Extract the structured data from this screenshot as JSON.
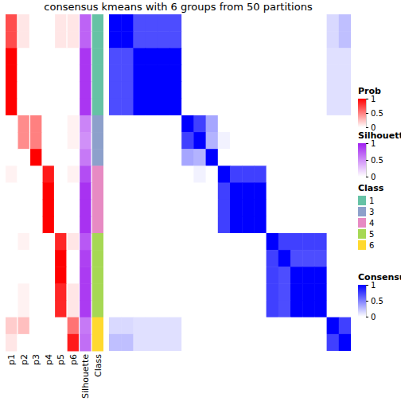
{
  "chart_data": {
    "type": "heatmap",
    "title": "consensus kmeans with 6 groups from 50 partitions",
    "column_labels": [
      "p1",
      "p2",
      "p3",
      "p4",
      "p5",
      "p6",
      "Silhouette",
      "Class"
    ],
    "membership": [
      [
        0.7,
        0.7,
        1,
        1,
        1,
        1,
        0,
        0,
        0,
        0.05,
        0,
        0,
        0,
        0,
        0,
        0,
        0,
        0,
        0.2,
        0.1
      ],
      [
        0.1,
        0.1,
        0,
        0,
        0,
        0,
        0.45,
        0.45,
        0,
        0,
        0,
        0,
        0,
        0.05,
        0,
        0,
        0.05,
        0.05,
        0.25,
        0
      ],
      [
        0,
        0,
        0,
        0,
        0,
        0,
        0.5,
        0.5,
        1,
        0,
        0,
        0,
        0,
        0,
        0,
        0,
        0,
        0,
        0,
        0
      ],
      [
        0,
        0,
        0,
        0,
        0,
        0,
        0,
        0,
        0,
        0.9,
        1,
        1,
        1,
        0,
        0,
        0,
        0,
        0,
        0,
        0
      ],
      [
        0.1,
        0.1,
        0,
        0,
        0,
        0,
        0,
        0,
        0,
        0,
        0,
        0,
        0,
        0.85,
        1,
        1,
        0.85,
        0.85,
        0,
        0
      ],
      [
        0.1,
        0.1,
        0,
        0,
        0,
        0,
        0.05,
        0.05,
        0,
        0.05,
        0,
        0,
        0,
        0.1,
        0,
        0,
        0.1,
        0.1,
        0.55,
        0.9
      ]
    ],
    "silhouette": [
      0.7,
      0.7,
      0.9,
      0.9,
      0.9,
      0.9,
      0.55,
      0.5,
      0.6,
      0.8,
      0.92,
      0.92,
      0.92,
      0.75,
      0.85,
      0.88,
      0.88,
      0.88,
      0.6,
      0.65
    ],
    "classes": [
      1,
      1,
      1,
      1,
      1,
      1,
      3,
      3,
      3,
      4,
      4,
      4,
      4,
      5,
      5,
      5,
      5,
      5,
      6,
      6
    ],
    "consensus": [
      [
        1,
        1,
        0.7,
        0.7,
        0.7,
        0.7,
        0,
        0,
        0,
        0,
        0,
        0,
        0,
        0,
        0,
        0,
        0,
        0,
        0.15,
        0.25
      ],
      [
        1,
        1,
        0.7,
        0.7,
        0.7,
        0.7,
        0,
        0,
        0,
        0,
        0,
        0,
        0,
        0,
        0,
        0,
        0,
        0,
        0.15,
        0.25
      ],
      [
        0.7,
        0.7,
        1,
        1,
        1,
        1,
        0,
        0,
        0,
        0,
        0,
        0,
        0,
        0,
        0,
        0,
        0,
        0,
        0.12,
        0.12
      ],
      [
        0.7,
        0.7,
        1,
        1,
        1,
        1,
        0,
        0,
        0,
        0,
        0,
        0,
        0,
        0,
        0,
        0,
        0,
        0,
        0.12,
        0.12
      ],
      [
        0.7,
        0.7,
        1,
        1,
        1,
        1,
        0,
        0,
        0,
        0,
        0,
        0,
        0,
        0,
        0,
        0,
        0,
        0,
        0.12,
        0.12
      ],
      [
        0.7,
        0.7,
        1,
        1,
        1,
        1,
        0,
        0,
        0,
        0,
        0,
        0,
        0,
        0,
        0,
        0,
        0,
        0,
        0.12,
        0.12
      ],
      [
        0,
        0,
        0,
        0,
        0,
        0,
        1,
        0.75,
        0.35,
        0,
        0,
        0,
        0,
        0,
        0,
        0,
        0,
        0,
        0,
        0
      ],
      [
        0,
        0,
        0,
        0,
        0,
        0,
        0.75,
        1,
        0.3,
        0.05,
        0,
        0,
        0,
        0,
        0,
        0,
        0,
        0,
        0,
        0
      ],
      [
        0,
        0,
        0,
        0,
        0,
        0,
        0.35,
        0.3,
        1,
        0,
        0,
        0,
        0,
        0,
        0,
        0,
        0,
        0,
        0,
        0
      ],
      [
        0,
        0,
        0,
        0,
        0,
        0,
        0,
        0.05,
        0,
        1,
        0.75,
        0.75,
        0.75,
        0,
        0,
        0,
        0,
        0,
        0,
        0
      ],
      [
        0,
        0,
        0,
        0,
        0,
        0,
        0,
        0,
        0,
        0.75,
        1,
        1,
        1,
        0,
        0,
        0,
        0,
        0,
        0,
        0
      ],
      [
        0,
        0,
        0,
        0,
        0,
        0,
        0,
        0,
        0,
        0.75,
        1,
        1,
        1,
        0,
        0,
        0,
        0,
        0,
        0,
        0
      ],
      [
        0,
        0,
        0,
        0,
        0,
        0,
        0,
        0,
        0,
        0.75,
        1,
        1,
        1,
        0,
        0,
        0,
        0,
        0,
        0,
        0
      ],
      [
        0,
        0,
        0,
        0,
        0,
        0,
        0,
        0,
        0,
        0,
        0,
        0,
        0,
        1,
        0.75,
        0.75,
        0.75,
        0.75,
        0,
        0
      ],
      [
        0,
        0,
        0,
        0,
        0,
        0,
        0,
        0,
        0,
        0,
        0,
        0,
        0,
        0.75,
        1,
        0.7,
        0.7,
        0.7,
        0,
        0
      ],
      [
        0,
        0,
        0,
        0,
        0,
        0,
        0,
        0,
        0,
        0,
        0,
        0,
        0,
        0.75,
        0.7,
        1,
        1,
        1,
        0,
        0
      ],
      [
        0,
        0,
        0,
        0,
        0,
        0,
        0,
        0,
        0,
        0,
        0,
        0,
        0,
        0.75,
        0.7,
        1,
        1,
        1,
        0,
        0
      ],
      [
        0,
        0,
        0,
        0,
        0,
        0,
        0,
        0,
        0,
        0,
        0,
        0,
        0,
        0.75,
        0.7,
        1,
        1,
        1,
        0,
        0
      ],
      [
        0.15,
        0.15,
        0.12,
        0.12,
        0.12,
        0.12,
        0,
        0,
        0,
        0,
        0,
        0,
        0,
        0,
        0,
        0,
        0,
        0,
        1,
        0.75
      ],
      [
        0.25,
        0.25,
        0.12,
        0.12,
        0.12,
        0.12,
        0,
        0,
        0,
        0,
        0,
        0,
        0,
        0,
        0,
        0,
        0,
        0,
        0.75,
        1
      ]
    ],
    "prob_colorbar": {
      "title": "Prob",
      "range": [
        0,
        1
      ],
      "ticks": [
        0,
        0.5,
        1
      ],
      "colors": [
        "#FFFFFF",
        "#FF0000"
      ]
    },
    "silhouette_colorbar": {
      "title": "Silhouette",
      "range": [
        0,
        1
      ],
      "ticks": [
        0,
        0.5,
        1
      ],
      "colors": [
        "#FFFFFF",
        "#A020F0"
      ]
    },
    "class_legend": {
      "title": "Class",
      "labels": [
        1,
        3,
        4,
        5,
        6
      ],
      "colors": [
        "#66C2A5",
        "#8DA0CB",
        "#E78AC3",
        "#A6D854",
        "#FFD92F"
      ]
    },
    "consensus_colorbar": {
      "title": "Consensus",
      "range": [
        0,
        1
      ],
      "ticks": [
        0,
        0.5,
        1
      ],
      "colors": [
        "#FFFFFF",
        "#0000FF"
      ]
    }
  }
}
